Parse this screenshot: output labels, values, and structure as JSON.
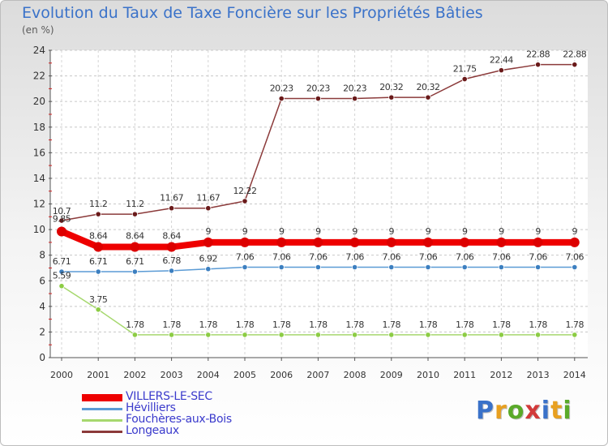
{
  "title": "Evolution du Taux de Taxe Foncière sur les Propriétés Bâties",
  "subtitle": "(en %)",
  "logo": {
    "text": "Proxiti",
    "colors": [
      "#3a72c9",
      "#e8a020",
      "#5aaa2a",
      "#d23a3a",
      "#3a72c9",
      "#e8a020",
      "#5aaa2a"
    ]
  },
  "chart_data": {
    "type": "line",
    "title": "Evolution du Taux de Taxe Foncière sur les Propriétés Bâties",
    "ylabel": "(en %)",
    "xlabel": "",
    "ylim": [
      0,
      24
    ],
    "yticks": [
      0,
      2,
      4,
      6,
      8,
      10,
      12,
      14,
      16,
      18,
      20,
      22,
      24
    ],
    "categories": [
      "2000",
      "2001",
      "2002",
      "2003",
      "2004",
      "2005",
      "2006",
      "2007",
      "2008",
      "2009",
      "2010",
      "2011",
      "2012",
      "2013",
      "2014"
    ],
    "series": [
      {
        "name": "VILLERS-LE-SEC",
        "color": "#ee0000",
        "point_color": "#dd0000",
        "width": 8,
        "values": [
          9.85,
          8.64,
          8.64,
          8.64,
          9,
          9,
          9,
          9,
          9,
          9,
          9,
          9,
          9,
          9,
          9
        ],
        "labels": [
          "9.85",
          "8.64",
          "8.64",
          "8.64",
          "9",
          "9",
          "9",
          "9",
          "9",
          "9",
          "9",
          "9",
          "9",
          "9",
          "9"
        ]
      },
      {
        "name": "Hévilliers",
        "color": "#5b9bd5",
        "point_color": "#3c7fc0",
        "width": 1.5,
        "values": [
          6.71,
          6.71,
          6.71,
          6.78,
          6.92,
          7.06,
          7.06,
          7.06,
          7.06,
          7.06,
          7.06,
          7.06,
          7.06,
          7.06,
          7.06
        ],
        "labels": [
          "6.71",
          "6.71",
          "6.71",
          "6.78",
          "6.92",
          "7.06",
          "7.06",
          "7.06",
          "7.06",
          "7.06",
          "7.06",
          "7.06",
          "7.06",
          "7.06",
          "7.06"
        ]
      },
      {
        "name": "Fouchères-aux-Bois",
        "color": "#a6d86e",
        "point_color": "#8ccc44",
        "width": 1.5,
        "values": [
          5.59,
          3.75,
          1.78,
          1.78,
          1.78,
          1.78,
          1.78,
          1.78,
          1.78,
          1.78,
          1.78,
          1.78,
          1.78,
          1.78,
          1.78
        ],
        "labels": [
          "5.59",
          "3.75",
          "1.78",
          "1.78",
          "1.78",
          "1.78",
          "1.78",
          "1.78",
          "1.78",
          "1.78",
          "1.78",
          "1.78",
          "1.78",
          "1.78",
          "1.78"
        ]
      },
      {
        "name": "Longeaux",
        "color": "#8b3a3a",
        "point_color": "#6a1a1a",
        "width": 1.5,
        "values": [
          10.7,
          11.2,
          11.2,
          11.67,
          11.67,
          12.22,
          20.23,
          20.23,
          20.23,
          20.32,
          20.32,
          21.75,
          22.44,
          22.88,
          22.88
        ],
        "labels": [
          "10.7",
          "11.2",
          "11.2",
          "11.67",
          "11.67",
          "12.22",
          "20.23",
          "20.23",
          "20.23",
          "20.32",
          "20.32",
          "21.75",
          "22.44",
          "22.88",
          "22.88"
        ]
      }
    ]
  }
}
